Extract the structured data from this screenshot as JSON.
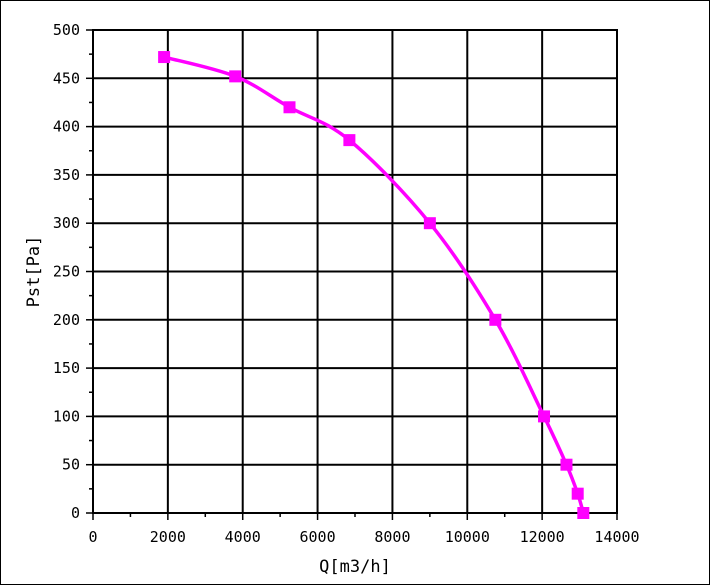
{
  "chart_data": {
    "type": "line",
    "xlabel": "Q[m3/h]",
    "ylabel": "Pst[Pa]",
    "xlim": [
      0,
      14000
    ],
    "ylim": [
      0,
      500
    ],
    "x_ticks": [
      0,
      2000,
      4000,
      6000,
      8000,
      10000,
      12000,
      14000
    ],
    "y_ticks": [
      0,
      50,
      100,
      150,
      200,
      250,
      300,
      350,
      400,
      450,
      500
    ],
    "x_tick_labels": [
      "0",
      "2000",
      "4000",
      "6000",
      "8000",
      "10000",
      "12000",
      "14000"
    ],
    "y_tick_labels": [
      "0",
      "50",
      "100",
      "150",
      "200",
      "250",
      "300",
      "350",
      "400",
      "450",
      "500"
    ],
    "grid": true,
    "series": [
      {
        "color": "#ff00ff",
        "marker": "square",
        "x": [
          1900,
          3800,
          5250,
          6850,
          9000,
          10750,
          12050,
          12650,
          12950,
          13100
        ],
        "y": [
          472,
          452,
          420,
          386,
          300,
          200,
          100,
          50,
          20,
          0
        ]
      }
    ]
  }
}
